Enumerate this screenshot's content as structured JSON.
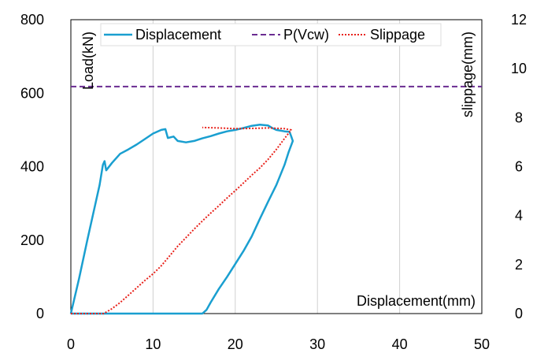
{
  "chart_data": {
    "type": "line",
    "xlabel": "Displacement(mm)",
    "ylabel_left": "Load(kN)",
    "ylabel_right": "slippage(mm)",
    "xlim": [
      0,
      50
    ],
    "ylim_left": [
      0,
      800
    ],
    "ylim_right": [
      0,
      12
    ],
    "x_ticks": [
      0,
      10,
      20,
      30,
      40,
      50
    ],
    "y_left_ticks": [
      0,
      200,
      400,
      600,
      800
    ],
    "y_right_ticks": [
      0,
      2,
      4,
      6,
      8,
      10,
      12
    ],
    "grid": "vertical",
    "legend_position": "top",
    "series": [
      {
        "name": "Displacement",
        "axis": "left",
        "style": "solid",
        "color": "#1a9fd0",
        "points": [
          [
            0,
            0
          ],
          [
            1,
            95
          ],
          [
            2,
            200
          ],
          [
            3,
            300
          ],
          [
            3.5,
            350
          ],
          [
            3.9,
            405
          ],
          [
            4.1,
            415
          ],
          [
            4.3,
            390
          ],
          [
            5,
            410
          ],
          [
            6,
            435
          ],
          [
            7,
            447
          ],
          [
            8,
            460
          ],
          [
            9,
            475
          ],
          [
            10,
            490
          ],
          [
            11,
            500
          ],
          [
            11.5,
            502
          ],
          [
            11.8,
            478
          ],
          [
            12.5,
            482
          ],
          [
            13,
            470
          ],
          [
            14,
            466
          ],
          [
            15,
            470
          ],
          [
            16,
            477
          ],
          [
            17,
            483
          ],
          [
            18,
            490
          ],
          [
            19,
            496
          ],
          [
            20,
            500
          ],
          [
            21,
            505
          ],
          [
            22,
            511
          ],
          [
            23,
            514
          ],
          [
            24,
            512
          ],
          [
            24.5,
            505
          ],
          [
            25,
            500
          ],
          [
            26,
            496
          ],
          [
            26.6,
            495
          ],
          [
            26.8,
            483
          ],
          [
            27,
            470
          ],
          [
            26.5,
            440
          ],
          [
            26,
            405
          ],
          [
            25,
            350
          ],
          [
            24,
            305
          ],
          [
            23,
            258
          ],
          [
            22,
            210
          ],
          [
            21,
            170
          ],
          [
            20,
            135
          ],
          [
            19,
            100
          ],
          [
            18,
            67
          ],
          [
            17,
            30
          ],
          [
            16.5,
            10
          ],
          [
            16,
            0
          ],
          [
            10,
            0
          ],
          [
            5,
            0
          ],
          [
            0,
            0
          ]
        ]
      },
      {
        "name": "P(Vcw)",
        "axis": "left",
        "style": "dashed",
        "color": "#6a2c91",
        "points": [
          [
            0,
            618
          ],
          [
            50,
            618
          ]
        ]
      },
      {
        "name": "Slippage",
        "axis": "right",
        "style": "dotted",
        "color": "#e8221b",
        "points": [
          [
            0,
            0
          ],
          [
            4,
            0
          ],
          [
            5,
            0.2
          ],
          [
            6,
            0.45
          ],
          [
            7,
            0.75
          ],
          [
            8,
            1.05
          ],
          [
            9,
            1.35
          ],
          [
            10,
            1.62
          ],
          [
            11,
            1.95
          ],
          [
            12,
            2.35
          ],
          [
            13,
            2.75
          ],
          [
            14,
            3.1
          ],
          [
            15,
            3.45
          ],
          [
            16,
            3.78
          ],
          [
            17,
            4.1
          ],
          [
            18,
            4.4
          ],
          [
            19,
            4.72
          ],
          [
            20,
            5.02
          ],
          [
            21,
            5.33
          ],
          [
            22,
            5.65
          ],
          [
            23,
            5.95
          ],
          [
            24,
            6.3
          ],
          [
            25,
            6.7
          ],
          [
            26,
            7.15
          ],
          [
            26.8,
            7.5
          ],
          [
            26,
            7.55
          ],
          [
            24,
            7.58
          ],
          [
            22,
            7.56
          ],
          [
            20,
            7.55
          ],
          [
            18,
            7.58
          ],
          [
            16,
            7.6
          ]
        ]
      }
    ]
  }
}
